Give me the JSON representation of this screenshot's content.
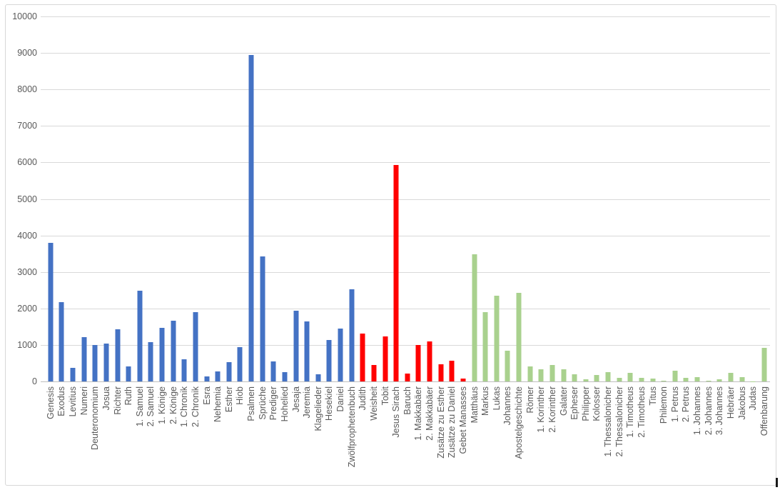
{
  "chart_data": {
    "type": "bar",
    "title": "",
    "xlabel": "",
    "ylabel": "",
    "ylim": [
      0,
      10000
    ],
    "ytick_step": 1000,
    "ytick_labels": [
      "0",
      "1000",
      "2000",
      "3000",
      "4000",
      "5000",
      "6000",
      "7000",
      "8000",
      "9000",
      "10000"
    ],
    "grid": true,
    "legend": false,
    "group_colors": {
      "old_testament": "#4472C4",
      "apocrypha": "#FF0000",
      "new_testament": "#A9D18E"
    },
    "bars": [
      {
        "label": "Genesis",
        "value": 3800,
        "group": "old_testament"
      },
      {
        "label": "Exodus",
        "value": 2180,
        "group": "old_testament"
      },
      {
        "label": "Levitius",
        "value": 380,
        "group": "old_testament"
      },
      {
        "label": "Numeri",
        "value": 1220,
        "group": "old_testament"
      },
      {
        "label": "Deuteronomium",
        "value": 1000,
        "group": "old_testament"
      },
      {
        "label": "Josua",
        "value": 1040,
        "group": "old_testament"
      },
      {
        "label": "Richter",
        "value": 1430,
        "group": "old_testament"
      },
      {
        "label": "Ruth",
        "value": 410,
        "group": "old_testament"
      },
      {
        "label": "1. Samuel",
        "value": 2480,
        "group": "old_testament"
      },
      {
        "label": "2. Samuel",
        "value": 1070,
        "group": "old_testament"
      },
      {
        "label": "1. Könige",
        "value": 1460,
        "group": "old_testament"
      },
      {
        "label": "2. Könige",
        "value": 1660,
        "group": "old_testament"
      },
      {
        "label": "1. Chronik",
        "value": 610,
        "group": "old_testament"
      },
      {
        "label": "2. Chronik",
        "value": 1900,
        "group": "old_testament"
      },
      {
        "label": "Esra",
        "value": 140,
        "group": "old_testament"
      },
      {
        "label": "Nehemia",
        "value": 270,
        "group": "old_testament"
      },
      {
        "label": "Esther",
        "value": 520,
        "group": "old_testament"
      },
      {
        "label": "Hiob",
        "value": 935,
        "group": "old_testament"
      },
      {
        "label": "Psalmen",
        "value": 8940,
        "group": "old_testament"
      },
      {
        "label": "Sprüche",
        "value": 3420,
        "group": "old_testament"
      },
      {
        "label": "Prediger",
        "value": 540,
        "group": "old_testament"
      },
      {
        "label": "Hohelied",
        "value": 260,
        "group": "old_testament"
      },
      {
        "label": "Jesaja",
        "value": 1940,
        "group": "old_testament"
      },
      {
        "label": "Jeremia",
        "value": 1650,
        "group": "old_testament"
      },
      {
        "label": "Klagelieder",
        "value": 190,
        "group": "old_testament"
      },
      {
        "label": "Hesekiel",
        "value": 1130,
        "group": "old_testament"
      },
      {
        "label": "Daniel",
        "value": 1450,
        "group": "old_testament"
      },
      {
        "label": "Zwölfprophetenbuch",
        "value": 2520,
        "group": "old_testament"
      },
      {
        "label": "Judith",
        "value": 1320,
        "group": "apocrypha"
      },
      {
        "label": "Weisheit",
        "value": 450,
        "group": "apocrypha"
      },
      {
        "label": "Tobit",
        "value": 1240,
        "group": "apocrypha"
      },
      {
        "label": "Jesus Sirach",
        "value": 5930,
        "group": "apocrypha"
      },
      {
        "label": "Baruch",
        "value": 220,
        "group": "apocrypha"
      },
      {
        "label": "1. Makkabäer",
        "value": 1000,
        "group": "apocrypha"
      },
      {
        "label": "2. Makkabäer",
        "value": 1100,
        "group": "apocrypha"
      },
      {
        "label": "Zusätze zu Esther",
        "value": 480,
        "group": "apocrypha"
      },
      {
        "label": "Zusätze zu Daniel",
        "value": 560,
        "group": "apocrypha"
      },
      {
        "label": "Gebet Manasses",
        "value": 80,
        "group": "apocrypha"
      },
      {
        "label": "Matthäus",
        "value": 3490,
        "group": "new_testament"
      },
      {
        "label": "Markus",
        "value": 1900,
        "group": "new_testament"
      },
      {
        "label": "Lukas",
        "value": 2340,
        "group": "new_testament"
      },
      {
        "label": "Johannes",
        "value": 850,
        "group": "new_testament"
      },
      {
        "label": "Apostelgeschichte",
        "value": 2420,
        "group": "new_testament"
      },
      {
        "label": "Römer",
        "value": 420,
        "group": "new_testament"
      },
      {
        "label": "1. Korinther",
        "value": 330,
        "group": "new_testament"
      },
      {
        "label": "2. Korinther",
        "value": 445,
        "group": "new_testament"
      },
      {
        "label": "Galater",
        "value": 335,
        "group": "new_testament"
      },
      {
        "label": "Epheser",
        "value": 205,
        "group": "new_testament"
      },
      {
        "label": "Philipper",
        "value": 65,
        "group": "new_testament"
      },
      {
        "label": "Kolosser",
        "value": 170,
        "group": "new_testament"
      },
      {
        "label": "1. Thessalonicher",
        "value": 255,
        "group": "new_testament"
      },
      {
        "label": "2. Thessalonicher",
        "value": 95,
        "group": "new_testament"
      },
      {
        "label": "1. Timotheus",
        "value": 230,
        "group": "new_testament"
      },
      {
        "label": "2. Timotheus",
        "value": 100,
        "group": "new_testament"
      },
      {
        "label": "Titus",
        "value": 85,
        "group": "new_testament"
      },
      {
        "label": "Philemon",
        "value": 30,
        "group": "new_testament"
      },
      {
        "label": "1. Petrus",
        "value": 285,
        "group": "new_testament"
      },
      {
        "label": "2. Petrus",
        "value": 105,
        "group": "new_testament"
      },
      {
        "label": "1. Johannes",
        "value": 125,
        "group": "new_testament"
      },
      {
        "label": "2. Johannes",
        "value": 15,
        "group": "new_testament"
      },
      {
        "label": "3. Johannes",
        "value": 50,
        "group": "new_testament"
      },
      {
        "label": "Hebräer",
        "value": 230,
        "group": "new_testament"
      },
      {
        "label": "Jakobus",
        "value": 125,
        "group": "new_testament"
      },
      {
        "label": "Judas",
        "value": 10,
        "group": "new_testament"
      },
      {
        "label": "Offenbarung",
        "value": 920,
        "group": "new_testament"
      }
    ]
  },
  "colors": {
    "gridline": "#D9D9D9",
    "zero_axis": "#BFBFBF",
    "axis_text": "#595959",
    "frame_border": "#D7D7D7",
    "background": "#FFFFFF"
  }
}
